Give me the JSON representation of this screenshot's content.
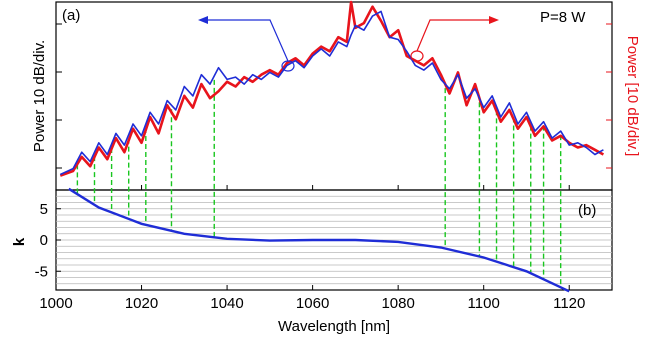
{
  "chart_data": [
    {
      "panel": "(a)",
      "type": "line",
      "annotation": "P=8 W",
      "xlabel": "",
      "ylabel_left": "Power 10 dB/div.",
      "ylabel_right": "Power [10 dB/div.]",
      "xlim": [
        1000,
        1130
      ],
      "left_axis_color": "#000000",
      "right_axis_color": "#e8141c",
      "arrows": [
        {
          "target_series": "left-axis",
          "direction": "left"
        },
        {
          "target_series": "right-axis",
          "direction": "right"
        }
      ],
      "series": [
        {
          "axis": "left",
          "color": "#1f2dd6",
          "style": "solid",
          "x": [
            1001,
            1004,
            1006,
            1008,
            1010,
            1012,
            1014,
            1016,
            1018,
            1020,
            1022,
            1024,
            1026,
            1028,
            1030,
            1032,
            1034,
            1036,
            1038,
            1040,
            1042,
            1044,
            1046,
            1048,
            1050,
            1052,
            1054,
            1056,
            1058,
            1060,
            1062,
            1064,
            1066,
            1068,
            1069,
            1070,
            1072,
            1074,
            1076,
            1078,
            1080,
            1082,
            1084,
            1086,
            1088,
            1090,
            1092,
            1094,
            1096,
            1098,
            1100,
            1102,
            1104,
            1106,
            1108,
            1110,
            1112,
            1114,
            1116,
            1118,
            1120,
            1122,
            1124,
            1126,
            1128
          ],
          "y": [
            3,
            8,
            22,
            14,
            30,
            20,
            38,
            28,
            46,
            36,
            56,
            46,
            66,
            58,
            78,
            70,
            88,
            80,
            94,
            84,
            86,
            80,
            88,
            84,
            90,
            86,
            96,
            100,
            94,
            104,
            110,
            104,
            116,
            112,
            122,
            130,
            126,
            138,
            142,
            120,
            118,
            108,
            96,
            92,
            98,
            84,
            76,
            88,
            68,
            76,
            60,
            70,
            52,
            64,
            46,
            56,
            40,
            48,
            34,
            40,
            28,
            30,
            26,
            20,
            24
          ]
        },
        {
          "axis": "right",
          "color": "#e8141c",
          "style": "solid",
          "x": [
            1001,
            1004,
            1006,
            1008,
            1010,
            1012,
            1014,
            1016,
            1018,
            1020,
            1022,
            1024,
            1026,
            1028,
            1030,
            1032,
            1034,
            1036,
            1038,
            1040,
            1042,
            1044,
            1046,
            1048,
            1050,
            1052,
            1054,
            1056,
            1058,
            1060,
            1062,
            1064,
            1066,
            1068,
            1069,
            1070,
            1072,
            1074,
            1076,
            1078,
            1080,
            1082,
            1084,
            1086,
            1088,
            1090,
            1092,
            1094,
            1096,
            1098,
            1100,
            1102,
            1104,
            1106,
            1108,
            1110,
            1112,
            1114,
            1116,
            1118,
            1120,
            1122,
            1124,
            1126,
            1128
          ],
          "y": [
            2,
            6,
            18,
            10,
            26,
            16,
            34,
            22,
            42,
            30,
            52,
            38,
            62,
            50,
            70,
            60,
            80,
            68,
            74,
            82,
            78,
            86,
            82,
            88,
            92,
            88,
            98,
            102,
            96,
            106,
            112,
            108,
            120,
            116,
            150,
            128,
            132,
            146,
            134,
            120,
            126,
            104,
            100,
            96,
            102,
            88,
            72,
            90,
            62,
            80,
            56,
            66,
            48,
            58,
            42,
            52,
            36,
            44,
            32,
            36,
            30,
            26,
            28,
            24,
            20
          ]
        }
      ]
    },
    {
      "panel": "(b)",
      "type": "line",
      "xlabel": "Wavelength [nm]",
      "ylabel": "k",
      "xlim": [
        1000,
        1130
      ],
      "ylim": [
        -8,
        8
      ],
      "xticks": [
        "1000",
        "1020",
        "1040",
        "1060",
        "1080",
        "1100",
        "1120"
      ],
      "yticks": [
        "5",
        "0",
        "-5"
      ],
      "grid": true,
      "series": [
        {
          "color": "#1f2dd6",
          "x": [
            1003,
            1010,
            1020,
            1030,
            1040,
            1050,
            1060,
            1070,
            1080,
            1090,
            1100,
            1110,
            1120
          ],
          "y": [
            8.2,
            5.2,
            2.6,
            1.0,
            0.2,
            -0.1,
            0.0,
            0.0,
            -0.3,
            -1.2,
            -2.8,
            -5.0,
            -8.2
          ]
        }
      ],
      "phase_matching_wavelengths": [
        1005,
        1009,
        1013,
        1017,
        1021,
        1027,
        1037,
        1091,
        1099,
        1103,
        1107,
        1111,
        1114,
        1118
      ]
    }
  ]
}
